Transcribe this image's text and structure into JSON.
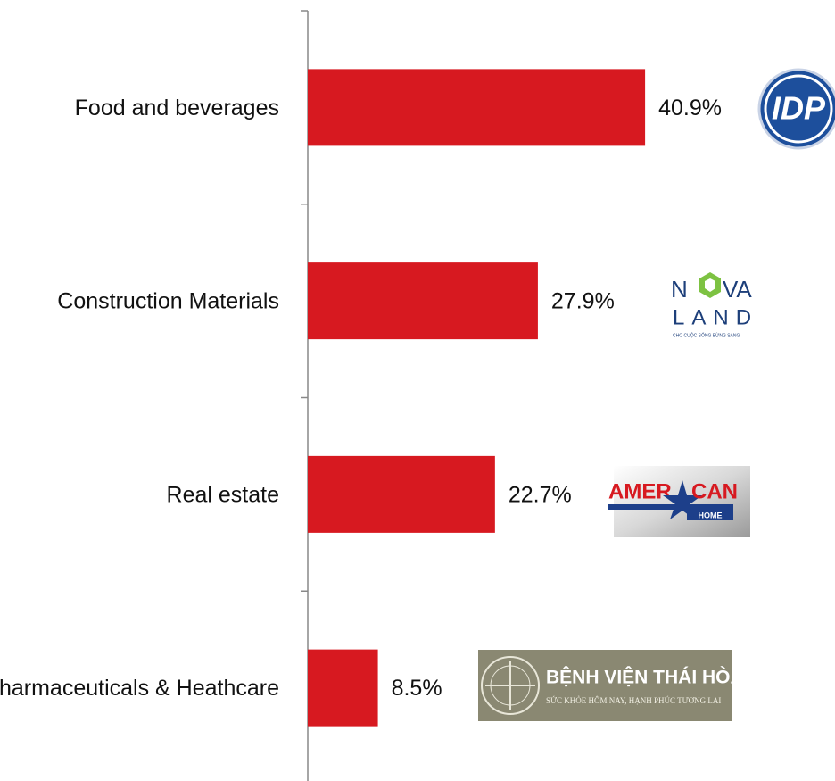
{
  "chart_data": {
    "type": "bar",
    "orientation": "horizontal",
    "categories": [
      "Food and beverages",
      "Construction Materials",
      "Real estate",
      "Pharmaceuticals & Heathcare"
    ],
    "values": [
      40.9,
      27.9,
      22.7,
      8.5
    ],
    "value_labels": [
      "40.9%",
      "27.9%",
      "22.7%",
      "8.5%"
    ],
    "color": "#d71920",
    "xlim": [
      0,
      45
    ]
  },
  "logos": {
    "idp": "IDP",
    "novaland": [
      "N",
      "VA",
      "LAND",
      "CHO CUỘC SỐNG BỪNG SÁNG"
    ],
    "american_home": [
      "AMER",
      "CAN",
      "HOME"
    ],
    "thai_hoa": [
      "BỆNH VIỆN THÁI HÒA",
      "SỨC KHỎE HÔM NAY, HẠNH PHÚC TƯƠNG LAI"
    ]
  }
}
